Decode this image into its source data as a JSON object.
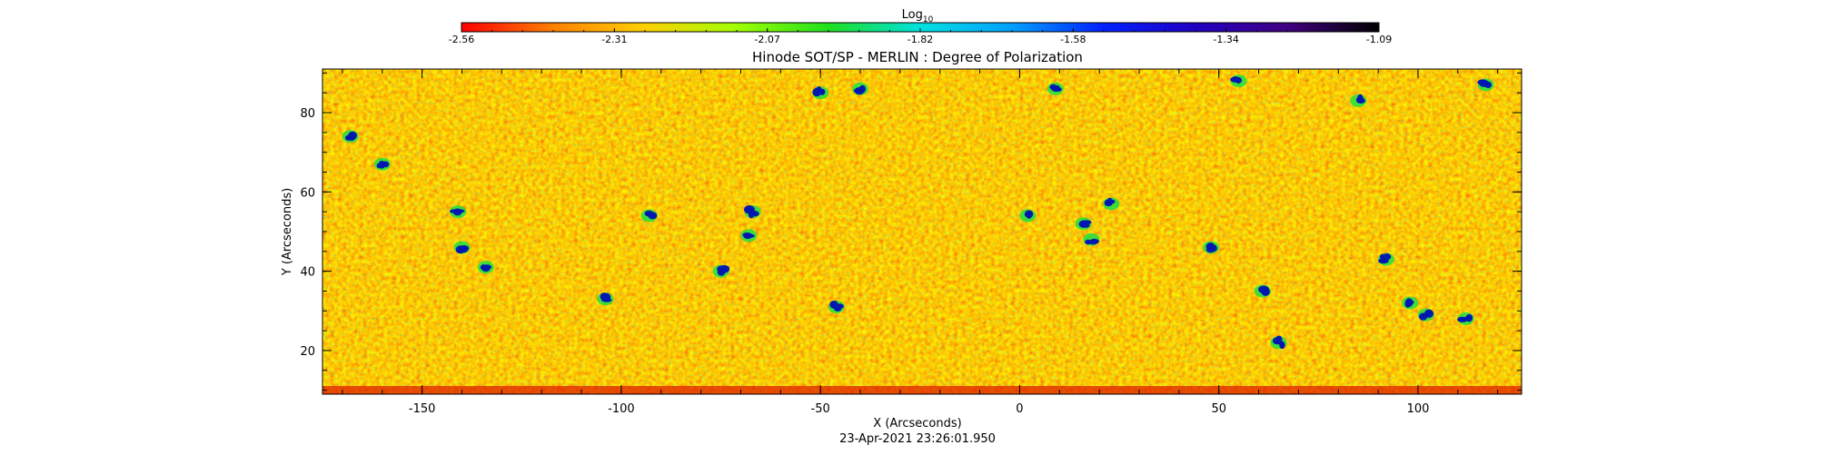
{
  "chart_data": {
    "type": "heatmap",
    "title": "Hinode SOT/SP - MERLIN : Degree of Polarization",
    "xlabel": "X (Arcseconds)",
    "ylabel": "Y (Arcseconds)",
    "timestamp": "23-Apr-2021 23:26:01.950",
    "colorbar": {
      "label_base": "Log",
      "label_sub": "10",
      "range": [
        -2.56,
        -1.09
      ],
      "tick_labels": [
        "-2.56",
        "-2.31",
        "-2.07",
        "-1.82",
        "-1.58",
        "-1.34",
        "-1.09"
      ],
      "colors": [
        "#ff0000",
        "#ff8000",
        "#ffd000",
        "#a0ff00",
        "#20e020",
        "#00e0e0",
        "#00a0ff",
        "#0020ff",
        "#2000c0",
        "#400080",
        "#000000"
      ]
    },
    "xlim": [
      -175,
      126
    ],
    "ylim": [
      9,
      91
    ],
    "x_tick_values": [
      -150,
      -100,
      -50,
      0,
      50,
      100
    ],
    "x_tick_labels": [
      "-150",
      "-100",
      "-50",
      "0",
      "50",
      "100"
    ],
    "y_tick_values": [
      20,
      40,
      60,
      80
    ],
    "y_tick_labels": [
      "20",
      "40",
      "60",
      "80"
    ],
    "background_field": "dense orange/red/yellow mottled polarization field",
    "magnetic_features": [
      {
        "x": -168,
        "y": 74
      },
      {
        "x": -160,
        "y": 67
      },
      {
        "x": -141,
        "y": 55
      },
      {
        "x": -140,
        "y": 46
      },
      {
        "x": -134,
        "y": 41
      },
      {
        "x": -104,
        "y": 33
      },
      {
        "x": -93,
        "y": 54
      },
      {
        "x": -75,
        "y": 40
      },
      {
        "x": -68,
        "y": 49
      },
      {
        "x": -67,
        "y": 55
      },
      {
        "x": -50,
        "y": 85
      },
      {
        "x": -46,
        "y": 31
      },
      {
        "x": -40,
        "y": 86
      },
      {
        "x": 2,
        "y": 54
      },
      {
        "x": 9,
        "y": 86
      },
      {
        "x": 16,
        "y": 52
      },
      {
        "x": 18,
        "y": 48
      },
      {
        "x": 23,
        "y": 57
      },
      {
        "x": 48,
        "y": 46
      },
      {
        "x": 55,
        "y": 88
      },
      {
        "x": 61,
        "y": 35
      },
      {
        "x": 65,
        "y": 22
      },
      {
        "x": 85,
        "y": 83
      },
      {
        "x": 92,
        "y": 43
      },
      {
        "x": 98,
        "y": 32
      },
      {
        "x": 102,
        "y": 29
      },
      {
        "x": 112,
        "y": 28
      },
      {
        "x": 117,
        "y": 87
      }
    ]
  }
}
